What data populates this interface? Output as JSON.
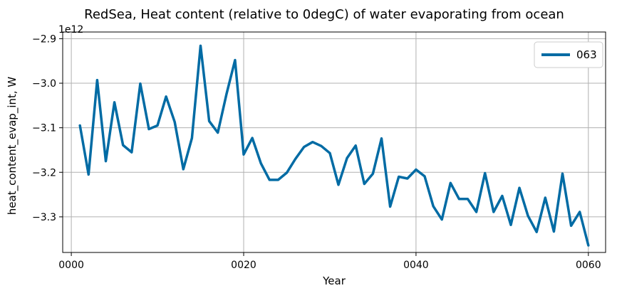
{
  "chart_data": {
    "type": "line",
    "title": "RedSea, Heat content (relative to 0degC) of water evaporating from ocean",
    "xlabel": "Year",
    "ylabel": "heat_content_evap_int, W",
    "y_offset_label": "1e12",
    "xlim": [
      -1,
      62
    ],
    "ylim": [
      -3.38,
      -2.885
    ],
    "x_ticks": [
      0,
      20,
      40,
      60
    ],
    "x_tick_labels": [
      "0000",
      "0020",
      "0040",
      "0060"
    ],
    "y_ticks": [
      -2.9,
      -3.0,
      -3.1,
      -3.2,
      -3.3
    ],
    "y_tick_labels": [
      "−2.9",
      "−3.0",
      "−3.1",
      "−3.2",
      "−3.3"
    ],
    "grid": true,
    "legend_position": "top-right",
    "series": [
      {
        "name": "063",
        "color": "#006ba4",
        "x": [
          1,
          2,
          3,
          4,
          5,
          6,
          7,
          8,
          9,
          10,
          11,
          12,
          13,
          14,
          15,
          16,
          17,
          18,
          19,
          20,
          21,
          22,
          23,
          24,
          25,
          26,
          27,
          28,
          29,
          30,
          31,
          32,
          33,
          34,
          35,
          36,
          37,
          38,
          39,
          40,
          41,
          42,
          43,
          44,
          45,
          46,
          47,
          48,
          49,
          50,
          51,
          52,
          53,
          54,
          55,
          56,
          57,
          58,
          59,
          60
        ],
        "y": [
          -3.095,
          -3.205,
          -2.993,
          -3.175,
          -3.043,
          -3.139,
          -3.155,
          -3.001,
          -3.103,
          -3.095,
          -3.03,
          -3.087,
          -3.193,
          -3.123,
          -2.916,
          -3.085,
          -3.111,
          -3.025,
          -2.948,
          -3.16,
          -3.123,
          -3.18,
          -3.217,
          -3.217,
          -3.201,
          -3.17,
          -3.143,
          -3.132,
          -3.141,
          -3.157,
          -3.228,
          -3.168,
          -3.14,
          -3.226,
          -3.203,
          -3.124,
          -3.277,
          -3.21,
          -3.214,
          -3.194,
          -3.209,
          -3.276,
          -3.306,
          -3.224,
          -3.26,
          -3.26,
          -3.289,
          -3.202,
          -3.289,
          -3.253,
          -3.318,
          -3.235,
          -3.298,
          -3.334,
          -3.257,
          -3.333,
          -3.203,
          -3.32,
          -3.289,
          -3.364
        ]
      }
    ]
  }
}
